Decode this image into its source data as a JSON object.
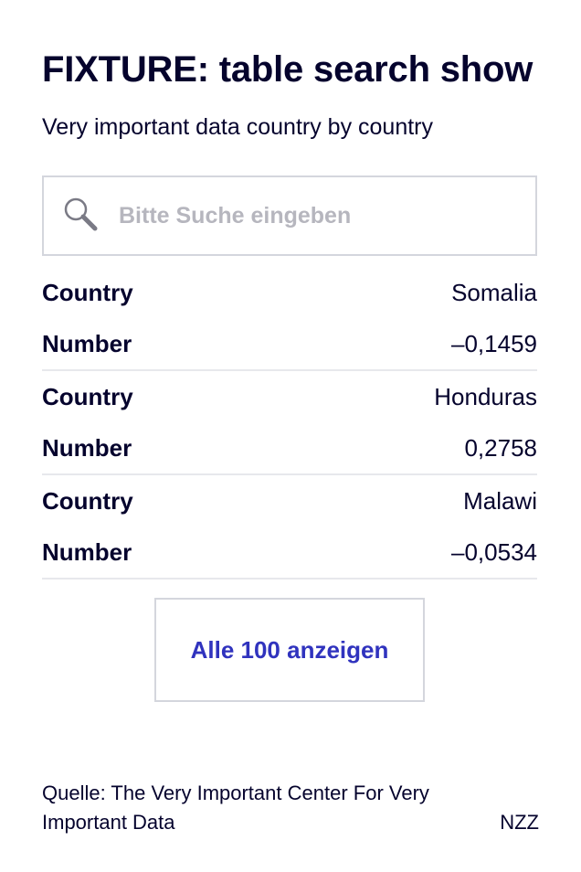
{
  "header": {
    "title": "FIXTURE: table search show",
    "subtitle": "Very important data country by country"
  },
  "search": {
    "placeholder": "Bitte Suche eingeben",
    "icon": "search-icon"
  },
  "table": {
    "records": [
      {
        "country_label": "Country",
        "country": "Somalia",
        "number_label": "Number",
        "number": "–0,1459"
      },
      {
        "country_label": "Country",
        "country": "Honduras",
        "number_label": "Number",
        "number": "0,2758"
      },
      {
        "country_label": "Country",
        "country": "Malawi",
        "number_label": "Number",
        "number": "–0,0534"
      }
    ]
  },
  "show_all_button": {
    "label": "Alle 100 anzeigen"
  },
  "footer": {
    "source": "Quelle: The Very Important Center For Very Important Data",
    "brand": "NZZ"
  },
  "colors": {
    "text": "#05032d",
    "accent": "#3033be",
    "border": "#d4d6dd",
    "placeholder": "#b6b6be"
  }
}
